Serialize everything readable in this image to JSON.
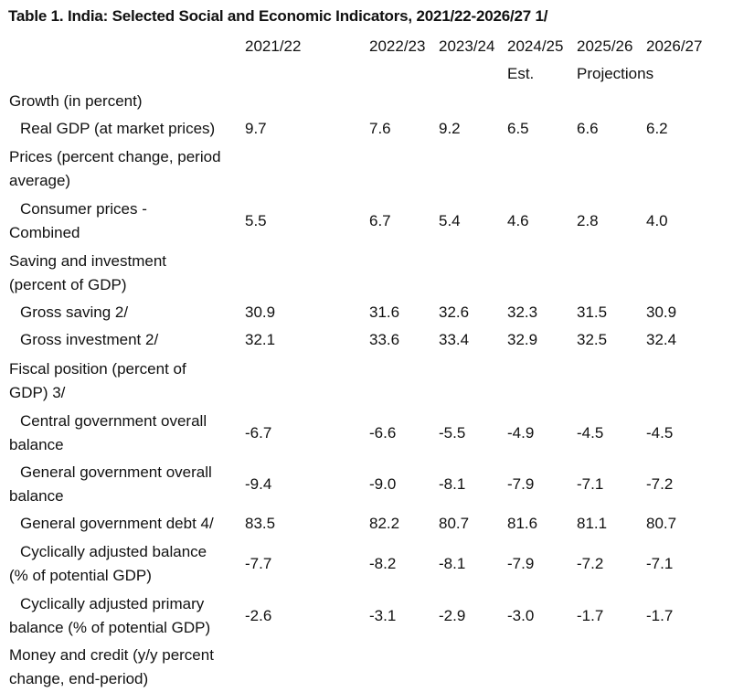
{
  "title": "Table 1. India: Selected Social and Economic Indicators, 2021/22-2026/27 1/",
  "columns": [
    "2021/22",
    "2022/23",
    "2023/24",
    "2024/25",
    "2025/26",
    "2026/27"
  ],
  "subheaders": {
    "est": "Est.",
    "projections": "Projections"
  },
  "rows": [
    {
      "label_lines": [
        "Growth (in percent)"
      ],
      "indent": false,
      "values": []
    },
    {
      "label_lines": [
        "Real GDP (at market prices)"
      ],
      "indent": true,
      "values": [
        "9.7",
        "7.6",
        "9.2",
        "6.5",
        "6.6",
        "6.2"
      ]
    },
    {
      "label_lines": [
        "Prices (percent change, period",
        "average)"
      ],
      "indent": false,
      "values": []
    },
    {
      "label_lines": [
        "Consumer prices -",
        "Combined"
      ],
      "indent": true,
      "values": [
        "5.5",
        "6.7",
        "5.4",
        "4.6",
        "2.8",
        "4.0"
      ]
    },
    {
      "label_lines": [
        "Saving and investment",
        "(percent of GDP)"
      ],
      "indent": false,
      "values": []
    },
    {
      "label_lines": [
        "Gross saving 2/"
      ],
      "indent": true,
      "values": [
        "30.9",
        "31.6",
        "32.6",
        "32.3",
        "31.5",
        "30.9"
      ]
    },
    {
      "label_lines": [
        "Gross investment 2/"
      ],
      "indent": true,
      "values": [
        "32.1",
        "33.6",
        "33.4",
        "32.9",
        "32.5",
        "32.4"
      ]
    },
    {
      "label_lines": [
        "Fiscal position (percent of",
        "GDP) 3/"
      ],
      "indent": false,
      "values": []
    },
    {
      "label_lines": [
        "Central government overall",
        "balance"
      ],
      "indent": true,
      "values": [
        "-6.7",
        "-6.6",
        "-5.5",
        "-4.9",
        "-4.5",
        "-4.5"
      ]
    },
    {
      "label_lines": [
        "General government overall",
        "balance"
      ],
      "indent": true,
      "values": [
        "-9.4",
        "-9.0",
        "-8.1",
        "-7.9",
        "-7.1",
        "-7.2"
      ]
    },
    {
      "label_lines": [
        "General government debt 4/"
      ],
      "indent": true,
      "values": [
        "83.5",
        "82.2",
        "80.7",
        "81.6",
        "81.1",
        "80.7"
      ]
    },
    {
      "label_lines": [
        "Cyclically adjusted balance",
        "(% of potential GDP)"
      ],
      "indent": true,
      "values": [
        "-7.7",
        "-8.2",
        "-8.1",
        "-7.9",
        "-7.2",
        "-7.1"
      ]
    },
    {
      "label_lines": [
        "Cyclically adjusted primary",
        "balance (% of potential GDP)"
      ],
      "indent": true,
      "values": [
        "-2.6",
        "-3.1",
        "-2.9",
        "-3.0",
        "-1.7",
        "-1.7"
      ]
    },
    {
      "label_lines": [
        "Money and credit (y/y percent",
        "change, end-period)"
      ],
      "indent": false,
      "values": []
    }
  ]
}
